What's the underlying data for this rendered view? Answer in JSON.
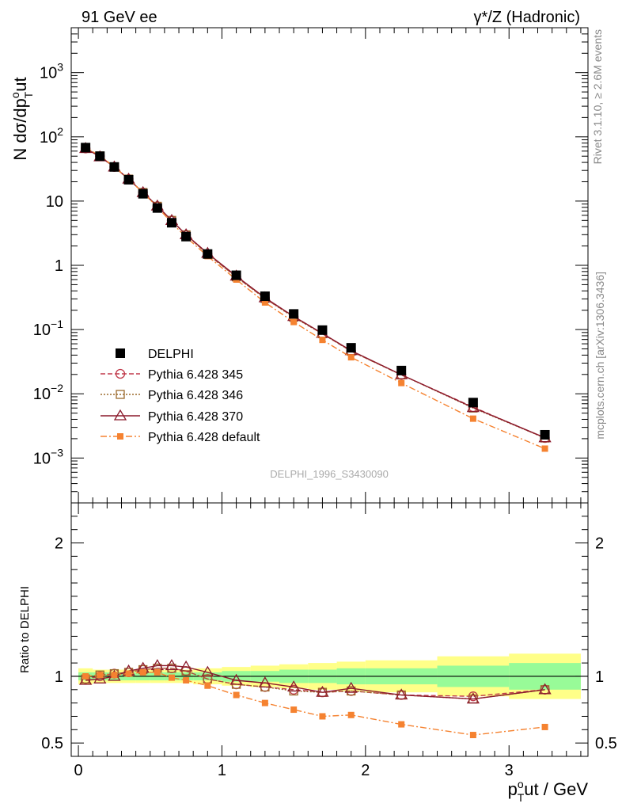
{
  "header": {
    "left_title": "91 GeV ee",
    "right_title": "γ*/Z (Hadronic)"
  },
  "side_labels": {
    "rivet": "Rivet 3.1.10, ≥ 2.6M events",
    "mcplots": "mcplots.cern.ch [arXiv:1306.3436]"
  },
  "watermark": "DELPHI_1996_S3430090",
  "colors": {
    "data": "#000000",
    "p345": "#c0394a",
    "p346": "#9c6a2c",
    "p370": "#8b1a2c",
    "pdef": "#f58230",
    "band_outer": "#ffff88",
    "band_inner": "#98fb98"
  },
  "chart_data": [
    {
      "type": "line",
      "panel": "main",
      "yscale": "log",
      "ylabel": "N dσ/dp_T^out",
      "ylabel_parts": {
        "main": "N dσ/dp",
        "sup": "o",
        "sub": "T",
        "tail": "ut"
      },
      "xlim": [
        -0.05,
        3.55
      ],
      "ylim": [
        0.0002,
        5000
      ],
      "y_ticks": [
        {
          "value": 0.001,
          "base": "10",
          "exp": "−3"
        },
        {
          "value": 0.01,
          "base": "10",
          "exp": "−2"
        },
        {
          "value": 0.1,
          "base": "10",
          "exp": "−1"
        },
        {
          "value": 1,
          "base": "1",
          "exp": ""
        },
        {
          "value": 10,
          "base": "10",
          "exp": ""
        },
        {
          "value": 100,
          "base": "10",
          "exp": "2"
        },
        {
          "value": 1000,
          "base": "10",
          "exp": "3"
        }
      ],
      "x": [
        0.05,
        0.15,
        0.25,
        0.35,
        0.45,
        0.55,
        0.65,
        0.75,
        0.9,
        1.1,
        1.3,
        1.5,
        1.7,
        1.9,
        2.25,
        2.75,
        3.25
      ],
      "series": [
        {
          "key": "data",
          "name": "DELPHI",
          "marker": "square",
          "values": [
            68,
            50,
            34,
            21.5,
            13,
            7.8,
            4.6,
            2.8,
            1.5,
            0.7,
            0.33,
            0.175,
            0.098,
            0.052,
            0.023,
            0.0073,
            0.0023
          ]
        },
        {
          "key": "p345",
          "name": "Pythia 6.428 345",
          "marker": "circle",
          "dash": "6,3",
          "values": [
            66,
            50,
            34,
            22,
            13.6,
            8.3,
            5.0,
            2.98,
            1.49,
            0.66,
            0.305,
            0.157,
            0.086,
            0.046,
            0.0197,
            0.0062,
            0.00205
          ]
        },
        {
          "key": "p346",
          "name": "Pythia 6.428 346",
          "marker": "opensquare",
          "dash": "2,2",
          "values": [
            66,
            50.5,
            34,
            22,
            13.6,
            8.3,
            5.0,
            2.98,
            1.49,
            0.66,
            0.305,
            0.155,
            0.086,
            0.046,
            0.0197,
            0.006,
            0.00205
          ]
        },
        {
          "key": "p370",
          "name": "Pythia 6.428 370",
          "marker": "triangle",
          "dash": "",
          "values": [
            66,
            49,
            34,
            22,
            13.6,
            8.4,
            5.0,
            3.0,
            1.54,
            0.68,
            0.313,
            0.16,
            0.087,
            0.047,
            0.0198,
            0.0061,
            0.00207
          ]
        },
        {
          "key": "pdef",
          "name": "Pythia 6.428 default",
          "marker": "smallsquare",
          "dash": "8,3,2,3",
          "values": [
            68,
            51,
            34,
            22,
            13.5,
            8.1,
            4.6,
            2.75,
            1.39,
            0.6,
            0.264,
            0.131,
            0.069,
            0.037,
            0.0147,
            0.0041,
            0.0014
          ]
        }
      ]
    },
    {
      "type": "line",
      "panel": "ratio",
      "ylabel": "Ratio to DELPHI",
      "xlabel": "p_T^out / GeV",
      "xlabel_parts": {
        "main": "p",
        "sup": "o",
        "sub": "T",
        "tail": "ut / GeV"
      },
      "xlim": [
        -0.05,
        3.55
      ],
      "ylim": [
        0.4,
        2.3
      ],
      "x_ticks": [
        0,
        1,
        2,
        3
      ],
      "x_tick_labels": [
        "0",
        "1",
        "2",
        "3"
      ],
      "y_ticks": [
        0.5,
        1,
        2
      ],
      "y_tick_labels": [
        "0.5",
        "1",
        "2"
      ],
      "reference": 1,
      "bands": {
        "edges": [
          0,
          0.1,
          0.2,
          0.3,
          0.4,
          0.5,
          0.6,
          0.7,
          0.8,
          1.0,
          1.2,
          1.4,
          1.6,
          1.8,
          2.0,
          2.5,
          3.0,
          3.5
        ],
        "outer": [
          0.06,
          0.05,
          0.05,
          0.05,
          0.05,
          0.05,
          0.05,
          0.05,
          0.06,
          0.07,
          0.08,
          0.09,
          0.1,
          0.11,
          0.12,
          0.15,
          0.17
        ],
        "inner": [
          0.03,
          0.03,
          0.03,
          0.03,
          0.03,
          0.03,
          0.03,
          0.03,
          0.03,
          0.04,
          0.04,
          0.05,
          0.05,
          0.06,
          0.06,
          0.08,
          0.1
        ]
      },
      "x": [
        0.05,
        0.15,
        0.25,
        0.35,
        0.45,
        0.55,
        0.65,
        0.75,
        0.9,
        1.1,
        1.3,
        1.5,
        1.7,
        1.9,
        2.25,
        2.75,
        3.25
      ],
      "series": [
        {
          "key": "p345",
          "name": "Pythia 6.428 345",
          "marker": "circle",
          "dash": "6,3",
          "values": [
            0.98,
            1.0,
            1.02,
            1.03,
            1.05,
            1.06,
            1.06,
            1.04,
            0.98,
            0.94,
            0.92,
            0.9,
            0.88,
            0.89,
            0.86,
            0.85,
            0.9
          ]
        },
        {
          "key": "p346",
          "name": "Pythia 6.428 346",
          "marker": "opensquare",
          "dash": "2,2",
          "values": [
            0.98,
            1.01,
            1.02,
            1.03,
            1.05,
            1.06,
            1.06,
            1.04,
            0.98,
            0.94,
            0.92,
            0.89,
            0.88,
            0.89,
            0.86,
            0.83,
            0.9
          ]
        },
        {
          "key": "p370",
          "name": "Pythia 6.428 370",
          "marker": "triangle",
          "dash": "",
          "values": [
            0.97,
            0.98,
            1.0,
            1.04,
            1.06,
            1.08,
            1.08,
            1.07,
            1.03,
            0.97,
            0.95,
            0.92,
            0.88,
            0.91,
            0.86,
            0.83,
            0.9
          ]
        },
        {
          "key": "pdef",
          "name": "Pythia 6.428 default",
          "marker": "smallsquare",
          "dash": "8,3,2,3",
          "values": [
            1.0,
            1.01,
            1.01,
            1.02,
            1.03,
            1.03,
            0.99,
            0.97,
            0.93,
            0.86,
            0.8,
            0.75,
            0.7,
            0.71,
            0.64,
            0.56,
            0.62
          ]
        }
      ]
    }
  ]
}
